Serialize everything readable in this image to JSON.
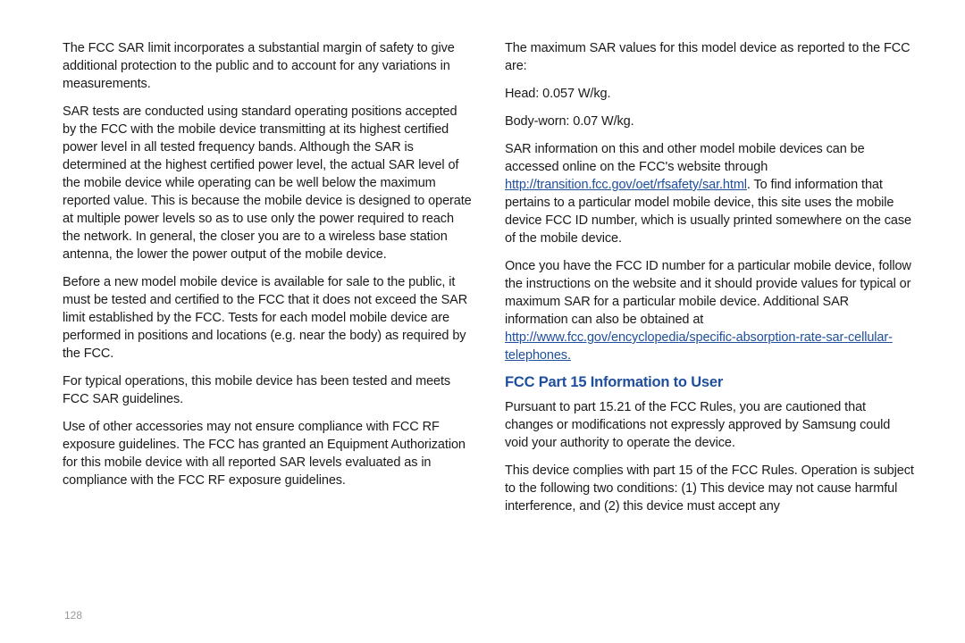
{
  "page_number": "128",
  "colors": {
    "body_text": "#1a1a1a",
    "heading": "#1f4e9c",
    "link": "#1f4e9c",
    "page_number": "#9a9a9a",
    "background": "#ffffff"
  },
  "typography": {
    "body_font_size_pt": 11,
    "body_line_height": 1.38,
    "heading_font_size_pt": 12.5,
    "heading_font_weight": 800,
    "font_family": "Arial"
  },
  "left_column": {
    "p1": "The FCC SAR limit incorporates a substantial margin of safety to give additional protection to the public and to account for any variations in measurements.",
    "p2": "SAR tests are conducted using standard operating positions accepted by the FCC with the mobile device transmitting at its highest certified power level in all tested frequency bands. Although the SAR is determined at the highest certified power level, the actual SAR level of the mobile device while operating can be well below the maximum reported value. This is because the mobile device is designed to operate at multiple power levels so as to use only the power required to reach the network. In general, the closer you are to a wireless base station antenna, the lower the power output of the mobile device.",
    "p3": "Before a new model mobile device is available for sale to the public, it must be tested and certified to the FCC that it does not exceed the SAR limit established by the FCC. Tests for each model mobile device are performed in positions and locations (e.g. near the body) as required by the FCC.",
    "p4": "For typical operations, this mobile device has been tested and meets FCC SAR guidelines.",
    "p5": "Use of other accessories may not ensure compliance with FCC RF exposure guidelines. The FCC has granted an Equipment Authorization for this mobile device with all reported SAR levels evaluated as in compliance with the FCC RF exposure guidelines."
  },
  "right_column": {
    "p1": "The maximum SAR values for this model device as reported to the FCC are:",
    "p2": "Head: 0.057 W/kg.",
    "p3": "Body-worn: 0.07 W/kg.",
    "p4_before_link": "SAR information on this and other model mobile devices can be accessed online on the FCC's website through ",
    "p4_link": "http://transition.fcc.gov/oet/rfsafety/sar.html",
    "p4_after_link": ". To find information that pertains to a particular model mobile device, this site uses the mobile device FCC ID number, which is usually printed somewhere on the case of the mobile device.",
    "p5_before_link": "Once you have the FCC ID number for a particular mobile device, follow the instructions on the website and it should provide values for typical or maximum SAR for a particular mobile device. Additional SAR information can also be obtained at ",
    "p5_link": "http://www.fcc.gov/encyclopedia/specific-absorption-rate-sar-cellular-telephones.",
    "heading": "FCC Part 15 Information to User",
    "p6": "Pursuant to part 15.21 of the FCC Rules, you are cautioned that changes or modifications not expressly approved by Samsung could void your authority to operate the device.",
    "p7": "This device complies with part 15 of the FCC Rules. Operation is subject to the following two conditions: (1) This device may not cause harmful interference, and (2) this device must accept any"
  }
}
